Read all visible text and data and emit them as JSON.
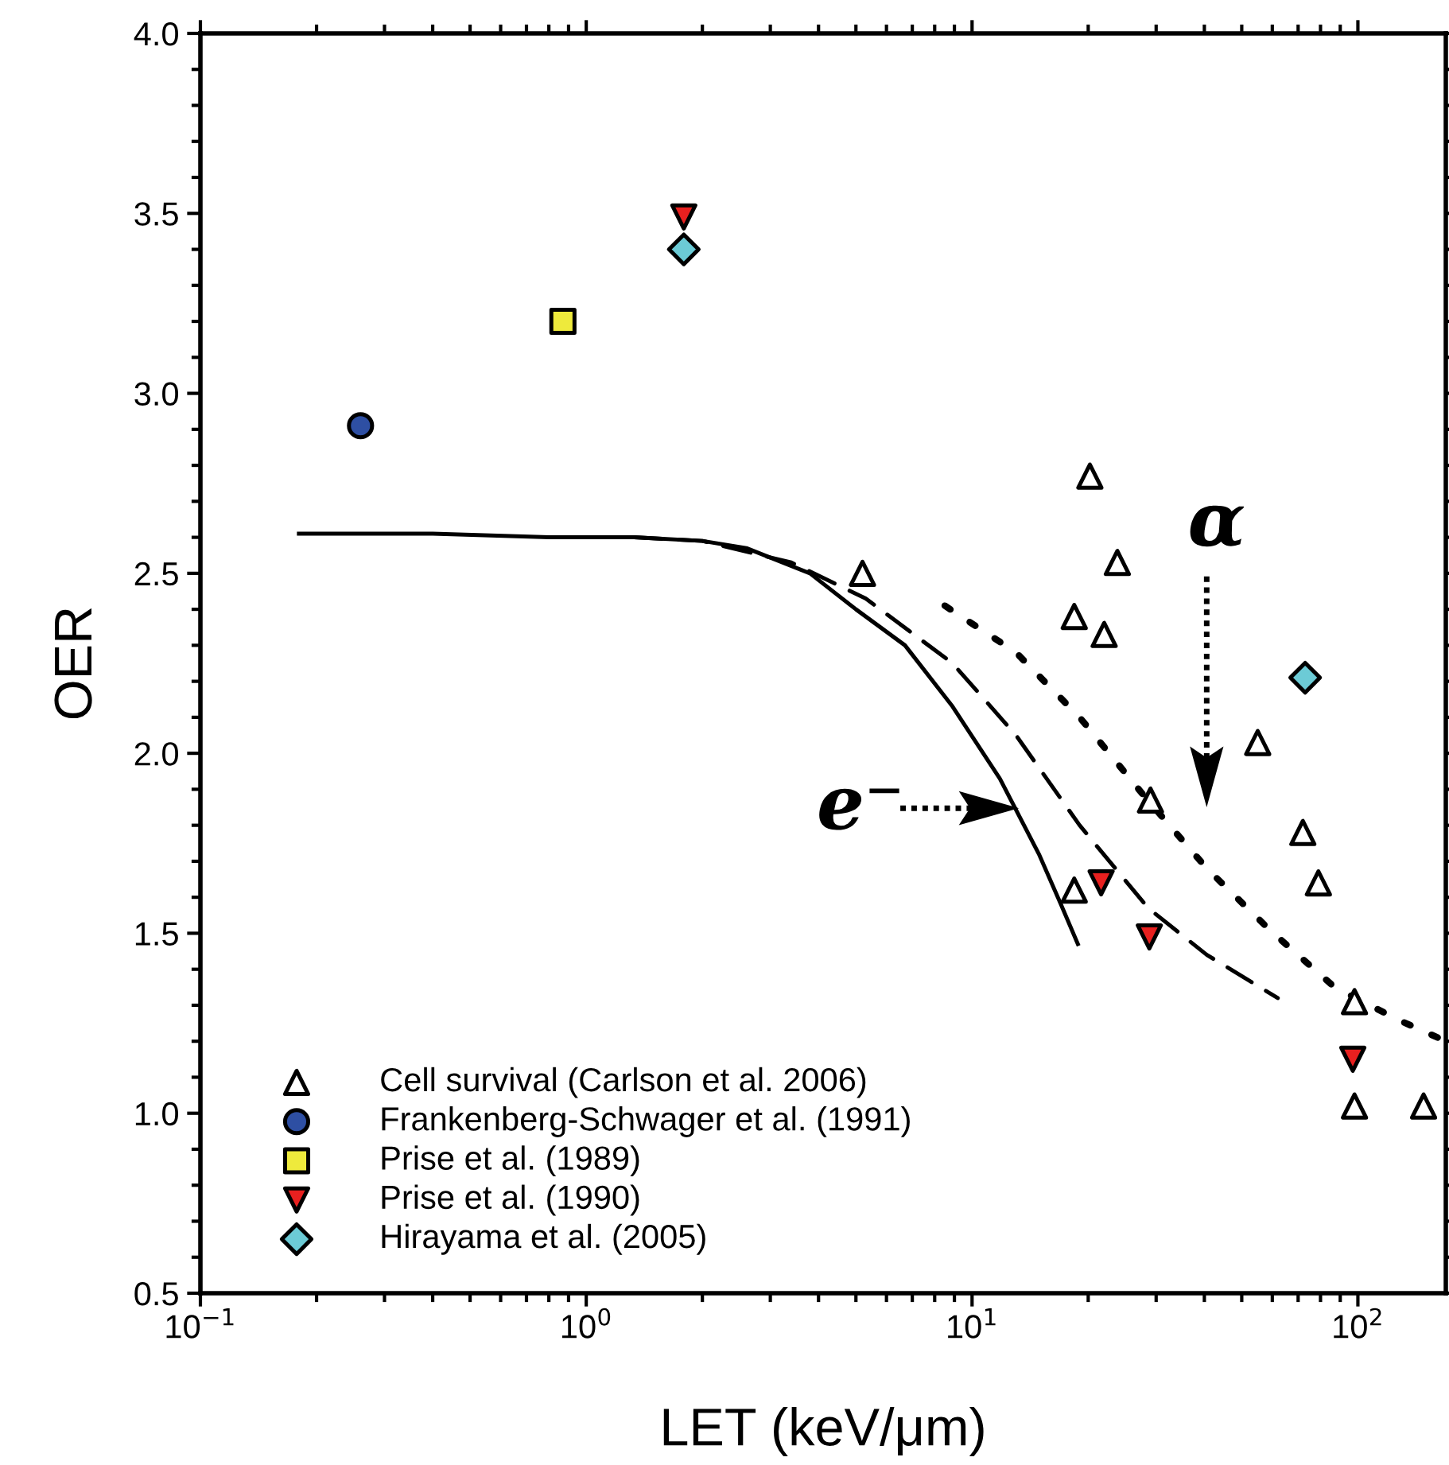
{
  "chart_data": {
    "type": "scatter",
    "xlabel": "LET (keV/μm)",
    "ylabel": "OER",
    "log": "x",
    "xlim": [
      0.1,
      169
    ],
    "xticks": [
      {
        "value": 0.1,
        "label": "10$^{−1}$"
      },
      {
        "value": 1,
        "label": "10$^{0}$"
      },
      {
        "value": 10,
        "label": "10$^{1}$"
      },
      {
        "value": 100,
        "label": "10$^{2}$"
      }
    ],
    "ylim": [
      0.5,
      4.0
    ],
    "yticks": [
      {
        "value": 0.5,
        "label": "0.5"
      },
      {
        "value": 1.0,
        "label": "1.0"
      },
      {
        "value": 1.5,
        "label": "1.5"
      },
      {
        "value": 2.0,
        "label": "2.0"
      },
      {
        "value": 2.5,
        "label": "2.5"
      },
      {
        "value": 3.0,
        "label": "3.0"
      },
      {
        "value": 3.5,
        "label": "3.5"
      },
      {
        "value": 4.0,
        "label": "4.0"
      }
    ],
    "grid": false,
    "legend": "bottom left",
    "series": [
      {
        "type": "line",
        "line_style": "solid",
        "color": "#000000",
        "x": [
          0.18,
          0.4,
          0.8,
          1.33,
          2.0,
          2.6,
          3.8,
          5.0,
          6.7,
          8.9,
          11.8,
          14.9,
          17.0,
          18.8
        ],
        "values": [
          2.61,
          2.61,
          2.6,
          2.6,
          2.59,
          2.57,
          2.5,
          2.4,
          2.3,
          2.13,
          1.93,
          1.72,
          1.58,
          1.47
        ]
      },
      {
        "type": "line",
        "line_style": "dashed",
        "color": "#000000",
        "x": [
          1.33,
          2.0,
          3.4,
          5.3,
          8.9,
          13,
          19,
          28.6,
          40.6,
          62
        ],
        "values": [
          2.6,
          2.59,
          2.53,
          2.43,
          2.25,
          2.05,
          1.8,
          1.57,
          1.44,
          1.32
        ]
      },
      {
        "type": "line",
        "line_style": "dotted",
        "color": "#000000",
        "x": [
          8.5,
          13,
          19,
          28,
          40.6,
          59,
          87,
          127,
          169
        ],
        "values": [
          2.41,
          2.28,
          2.1,
          1.88,
          1.68,
          1.51,
          1.35,
          1.26,
          1.2
        ]
      },
      {
        "name": "Cell survival (Carlson et al. 2006)",
        "marker": "triangle",
        "color": "#ffffff",
        "x": [
          5.2,
          20.2,
          18.4,
          22.0,
          23.8,
          29.0,
          55,
          72,
          79,
          98,
          98,
          148,
          18.4
        ],
        "values": [
          2.5,
          2.77,
          2.38,
          2.33,
          2.53,
          1.87,
          2.03,
          1.78,
          1.64,
          1.31,
          1.02,
          1.02,
          1.62
        ]
      },
      {
        "name": "Frankenberg-Schwager et al. (1991)",
        "marker": "circle",
        "color": "#2e4fa3",
        "x": [
          0.26
        ],
        "values": [
          2.91
        ]
      },
      {
        "name": "Prise et al. (1989)",
        "marker": "square",
        "color": "#eeea3c",
        "x": [
          0.87
        ],
        "values": [
          3.2
        ]
      },
      {
        "name": "Prise et al. (1990)",
        "marker": "triangle_down",
        "color": "#e8201f",
        "x": [
          1.79,
          21.6,
          28.8,
          97
        ],
        "values": [
          3.49,
          1.64,
          1.49,
          1.15
        ]
      },
      {
        "name": "Hirayama et al. (2005)",
        "marker": "diamond",
        "color": "#6ccbd6",
        "x": [
          1.79,
          73
        ],
        "values": [
          3.4,
          2.21
        ]
      }
    ],
    "annotations": [
      "α",
      "e⁻"
    ]
  }
}
